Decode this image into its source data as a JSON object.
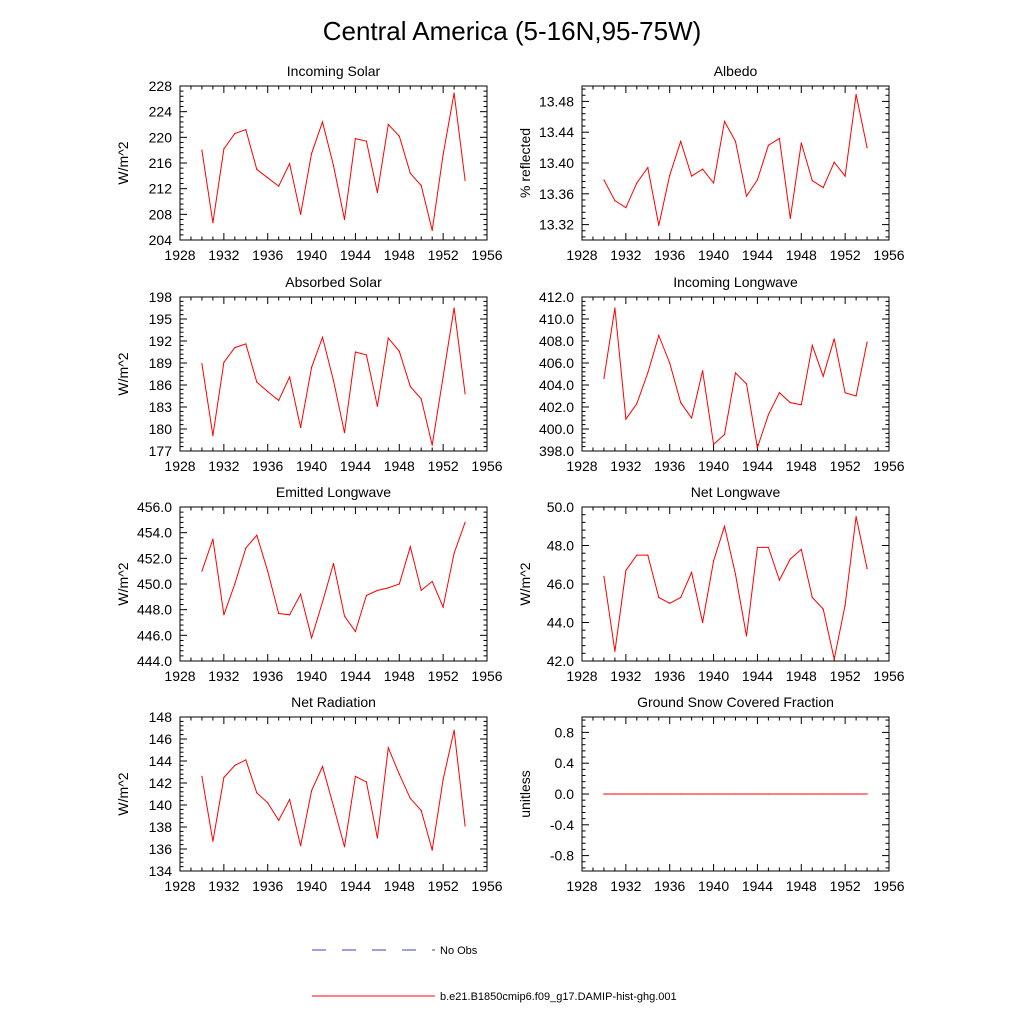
{
  "figure": {
    "title": "Central America (5-16N,95-75W)",
    "series_color": "#ff0000",
    "obs_color": "#4040c0"
  },
  "legend": {
    "obs_label": "No Obs",
    "model_label": "b.e21.B1850cmip6.f09_g17.DAMIP-hist-ghg.001"
  },
  "chart_data": [
    {
      "type": "line",
      "title": "Incoming Solar",
      "ylabel": "W/m^2",
      "xlim": [
        1928,
        1956
      ],
      "ylim": [
        204,
        228
      ],
      "yticks": [
        "204",
        "208",
        "212",
        "216",
        "220",
        "224",
        "228"
      ],
      "xticks": [
        "1928",
        "1932",
        "1936",
        "1940",
        "1944",
        "1948",
        "1952",
        "1956"
      ],
      "x": [
        1930,
        1931,
        1932,
        1933,
        1934,
        1935,
        1936,
        1937,
        1938,
        1939,
        1940,
        1941,
        1942,
        1943,
        1944,
        1945,
        1946,
        1947,
        1948,
        1949,
        1950,
        1951,
        1952,
        1953,
        1954
      ],
      "values": [
        218.0,
        206.7,
        218.2,
        220.6,
        221.2,
        215.0,
        213.7,
        212.4,
        215.9,
        208.0,
        217.5,
        222.4,
        215.6,
        207.2,
        219.8,
        219.4,
        211.4,
        222.0,
        220.2,
        214.4,
        212.5,
        205.5,
        217.3,
        226.9,
        213.3
      ]
    },
    {
      "type": "line",
      "title": "Albedo",
      "ylabel": "% reflected",
      "xlim": [
        1928,
        1956
      ],
      "ylim": [
        13.3,
        13.5
      ],
      "yticks": [
        "13.32",
        "13.36",
        "13.40",
        "13.44",
        "13.48"
      ],
      "xticks": [
        "1928",
        "1932",
        "1936",
        "1940",
        "1944",
        "1948",
        "1952",
        "1956"
      ],
      "x": [
        1930,
        1931,
        1932,
        1933,
        1934,
        1935,
        1936,
        1937,
        1938,
        1939,
        1940,
        1941,
        1942,
        1943,
        1944,
        1945,
        1946,
        1947,
        1948,
        1949,
        1950,
        1951,
        1952,
        1953,
        1954
      ],
      "values": [
        13.378,
        13.351,
        13.342,
        13.374,
        13.394,
        13.319,
        13.384,
        13.428,
        13.383,
        13.392,
        13.374,
        13.454,
        13.428,
        13.357,
        13.378,
        13.423,
        13.432,
        13.328,
        13.426,
        13.377,
        13.368,
        13.401,
        13.383,
        13.489,
        13.42
      ]
    },
    {
      "type": "line",
      "title": "Absorbed Solar",
      "ylabel": "W/m^2",
      "xlim": [
        1928,
        1956
      ],
      "ylim": [
        177,
        198
      ],
      "yticks": [
        "177",
        "180",
        "183",
        "186",
        "189",
        "192",
        "195",
        "198"
      ],
      "xticks": [
        "1928",
        "1932",
        "1936",
        "1940",
        "1944",
        "1948",
        "1952",
        "1956"
      ],
      "x": [
        1930,
        1931,
        1932,
        1933,
        1934,
        1935,
        1936,
        1937,
        1938,
        1939,
        1940,
        1941,
        1942,
        1943,
        1944,
        1945,
        1946,
        1947,
        1948,
        1949,
        1950,
        1951,
        1952,
        1953,
        1954
      ],
      "values": [
        188.9,
        179.1,
        189.1,
        191.1,
        191.6,
        186.4,
        185.1,
        183.9,
        187.1,
        180.2,
        188.4,
        192.5,
        186.6,
        179.5,
        190.5,
        190.1,
        183.1,
        192.4,
        190.6,
        185.8,
        184.1,
        177.8,
        187.1,
        196.5,
        184.8
      ]
    },
    {
      "type": "line",
      "title": "Incoming Longwave",
      "ylabel": "",
      "xlim": [
        1928,
        1956
      ],
      "ylim": [
        398.0,
        412.0
      ],
      "yticks": [
        "398.0",
        "400.0",
        "402.0",
        "404.0",
        "406.0",
        "408.0",
        "410.0",
        "412.0"
      ],
      "xticks": [
        "1928",
        "1932",
        "1936",
        "1940",
        "1944",
        "1948",
        "1952",
        "1956"
      ],
      "x": [
        1930,
        1931,
        1932,
        1933,
        1934,
        1935,
        1936,
        1937,
        1938,
        1939,
        1940,
        1941,
        1942,
        1943,
        1944,
        1945,
        1946,
        1947,
        1948,
        1949,
        1950,
        1951,
        1952,
        1953,
        1954
      ],
      "values": [
        404.6,
        411.0,
        400.9,
        402.3,
        405.1,
        408.5,
        406.0,
        402.4,
        401.0,
        405.3,
        398.6,
        399.5,
        405.1,
        404.1,
        398.3,
        401.3,
        403.3,
        402.4,
        402.2,
        407.6,
        404.8,
        408.2,
        403.3,
        403.0,
        407.9
      ]
    },
    {
      "type": "line",
      "title": "Emitted Longwave",
      "ylabel": "W/m^2",
      "xlim": [
        1928,
        1956
      ],
      "ylim": [
        444.0,
        456.0
      ],
      "yticks": [
        "444.0",
        "446.0",
        "448.0",
        "450.0",
        "452.0",
        "454.0",
        "456.0"
      ],
      "xticks": [
        "1928",
        "1932",
        "1936",
        "1940",
        "1944",
        "1948",
        "1952",
        "1956"
      ],
      "x": [
        1930,
        1931,
        1932,
        1933,
        1934,
        1935,
        1936,
        1937,
        1938,
        1939,
        1940,
        1941,
        1942,
        1943,
        1944,
        1945,
        1946,
        1947,
        1948,
        1949,
        1950,
        1951,
        1952,
        1953,
        1954
      ],
      "values": [
        451.0,
        453.5,
        447.6,
        450.0,
        452.8,
        453.8,
        451.0,
        447.7,
        447.6,
        449.2,
        445.8,
        448.6,
        451.6,
        447.5,
        446.3,
        449.1,
        449.5,
        449.7,
        450.0,
        452.9,
        449.5,
        450.2,
        448.2,
        452.4,
        454.8
      ]
    },
    {
      "type": "line",
      "title": "Net Longwave",
      "ylabel": "W/m^2",
      "xlim": [
        1928,
        1956
      ],
      "ylim": [
        42.0,
        50.0
      ],
      "yticks": [
        "42.0",
        "44.0",
        "46.0",
        "48.0",
        "50.0"
      ],
      "xticks": [
        "1928",
        "1932",
        "1936",
        "1940",
        "1944",
        "1948",
        "1952",
        "1956"
      ],
      "x": [
        1930,
        1931,
        1932,
        1933,
        1934,
        1935,
        1936,
        1937,
        1938,
        1939,
        1940,
        1941,
        1942,
        1943,
        1944,
        1945,
        1946,
        1947,
        1948,
        1949,
        1950,
        1951,
        1952,
        1953,
        1954
      ],
      "values": [
        46.4,
        42.5,
        46.7,
        47.5,
        47.5,
        45.3,
        45.0,
        45.3,
        46.6,
        44.0,
        47.2,
        49.0,
        46.5,
        43.3,
        47.9,
        47.9,
        46.2,
        47.3,
        47.8,
        45.3,
        44.7,
        42.1,
        44.9,
        49.5,
        46.8
      ]
    },
    {
      "type": "line",
      "title": "Net Radiation",
      "ylabel": "W/m^2",
      "xlim": [
        1928,
        1956
      ],
      "ylim": [
        134,
        148
      ],
      "yticks": [
        "134",
        "136",
        "138",
        "140",
        "142",
        "144",
        "146",
        "148"
      ],
      "xticks": [
        "1928",
        "1932",
        "1936",
        "1940",
        "1944",
        "1948",
        "1952",
        "1956"
      ],
      "x": [
        1930,
        1931,
        1932,
        1933,
        1934,
        1935,
        1936,
        1937,
        1938,
        1939,
        1940,
        1941,
        1942,
        1943,
        1944,
        1945,
        1946,
        1947,
        1948,
        1949,
        1950,
        1951,
        1952,
        1953,
        1954
      ],
      "values": [
        142.6,
        136.7,
        142.5,
        143.6,
        144.1,
        141.1,
        140.2,
        138.6,
        140.5,
        136.3,
        141.3,
        143.5,
        139.9,
        136.2,
        142.6,
        142.1,
        137.0,
        145.2,
        142.8,
        140.6,
        139.5,
        135.9,
        142.3,
        146.8,
        138.1
      ]
    },
    {
      "type": "line",
      "title": "Ground Snow Covered Fraction",
      "ylabel": "unitless",
      "xlim": [
        1928,
        1956
      ],
      "ylim": [
        -1.0,
        1.0
      ],
      "yticks": [
        "-0.8",
        "-0.4",
        "0.0",
        "0.4",
        "0.8"
      ],
      "xticks": [
        "1928",
        "1932",
        "1936",
        "1940",
        "1944",
        "1948",
        "1952",
        "1956"
      ],
      "x": [
        1930,
        1931,
        1932,
        1933,
        1934,
        1935,
        1936,
        1937,
        1938,
        1939,
        1940,
        1941,
        1942,
        1943,
        1944,
        1945,
        1946,
        1947,
        1948,
        1949,
        1950,
        1951,
        1952,
        1953,
        1954
      ],
      "values": [
        0,
        0,
        0,
        0,
        0,
        0,
        0,
        0,
        0,
        0,
        0,
        0,
        0,
        0,
        0,
        0,
        0,
        0,
        0,
        0,
        0,
        0,
        0,
        0,
        0
      ]
    }
  ]
}
